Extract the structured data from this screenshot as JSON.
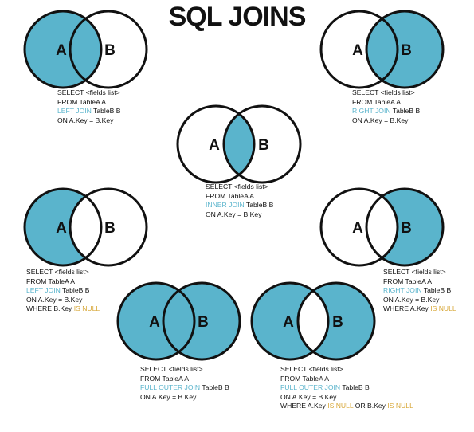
{
  "title": "SQL JOINS",
  "colors": {
    "fill": "#5ab4cc",
    "stroke": "#111111",
    "keyword": "#5ab4cc",
    "null_keyword": "#d8a83a"
  },
  "set_labels": {
    "a": "A",
    "b": "B"
  },
  "joins": [
    {
      "id": "left-join",
      "shaded": [
        "a_only",
        "intersection"
      ],
      "sql": {
        "select": "SELECT <fields list>",
        "from": "FROM TableA A",
        "join_keyword": "LEFT JOIN",
        "join_table": " TableB B",
        "on": "ON A.Key = B.Key"
      }
    },
    {
      "id": "right-join",
      "shaded": [
        "b_only",
        "intersection"
      ],
      "sql": {
        "select": "SELECT <fields list>",
        "from": "FROM TableA A",
        "join_keyword": "RIGHT JOIN",
        "join_table": " TableB B",
        "on": "ON A.Key = B.Key"
      }
    },
    {
      "id": "inner-join",
      "shaded": [
        "intersection"
      ],
      "sql": {
        "select": "SELECT <fields list>",
        "from": "FROM TableA A",
        "join_keyword": "INNER JOIN",
        "join_table": " TableB B",
        "on": "ON A.Key = B.Key"
      }
    },
    {
      "id": "left-join-null",
      "shaded": [
        "a_only"
      ],
      "sql": {
        "select": "SELECT <fields list>",
        "from": "FROM TableA A",
        "join_keyword": "LEFT JOIN",
        "join_table": " TableB B",
        "on": "ON A.Key = B.Key",
        "where_prefix": "WHERE B.Key ",
        "where_keyword": "IS NULL"
      }
    },
    {
      "id": "right-join-null",
      "shaded": [
        "b_only"
      ],
      "sql": {
        "select": "SELECT <fields list>",
        "from": "FROM TableA A",
        "join_keyword": "RIGHT JOIN",
        "join_table": " TableB B",
        "on": "ON A.Key = B.Key",
        "where_prefix": "WHERE A.Key ",
        "where_keyword": "IS NULL"
      }
    },
    {
      "id": "full-outer-join",
      "shaded": [
        "a_only",
        "intersection",
        "b_only"
      ],
      "sql": {
        "select": "SELECT <fields list>",
        "from": "FROM TableA A",
        "join_keyword": "FULL OUTER JOIN",
        "join_table": " TableB B",
        "on": "ON A.Key = B.Key"
      }
    },
    {
      "id": "full-outer-join-null",
      "shaded": [
        "a_only",
        "b_only"
      ],
      "sql": {
        "select": "SELECT <fields list>",
        "from": "FROM TableA A",
        "join_keyword": "FULL OUTER JOIN",
        "join_table": " TableB B",
        "on": "ON A.Key = B.Key",
        "where_prefix": "WHERE A.Key ",
        "where_keyword": "IS NULL",
        "where_middle": " OR B.Key ",
        "where_keyword2": "IS NULL"
      }
    }
  ]
}
